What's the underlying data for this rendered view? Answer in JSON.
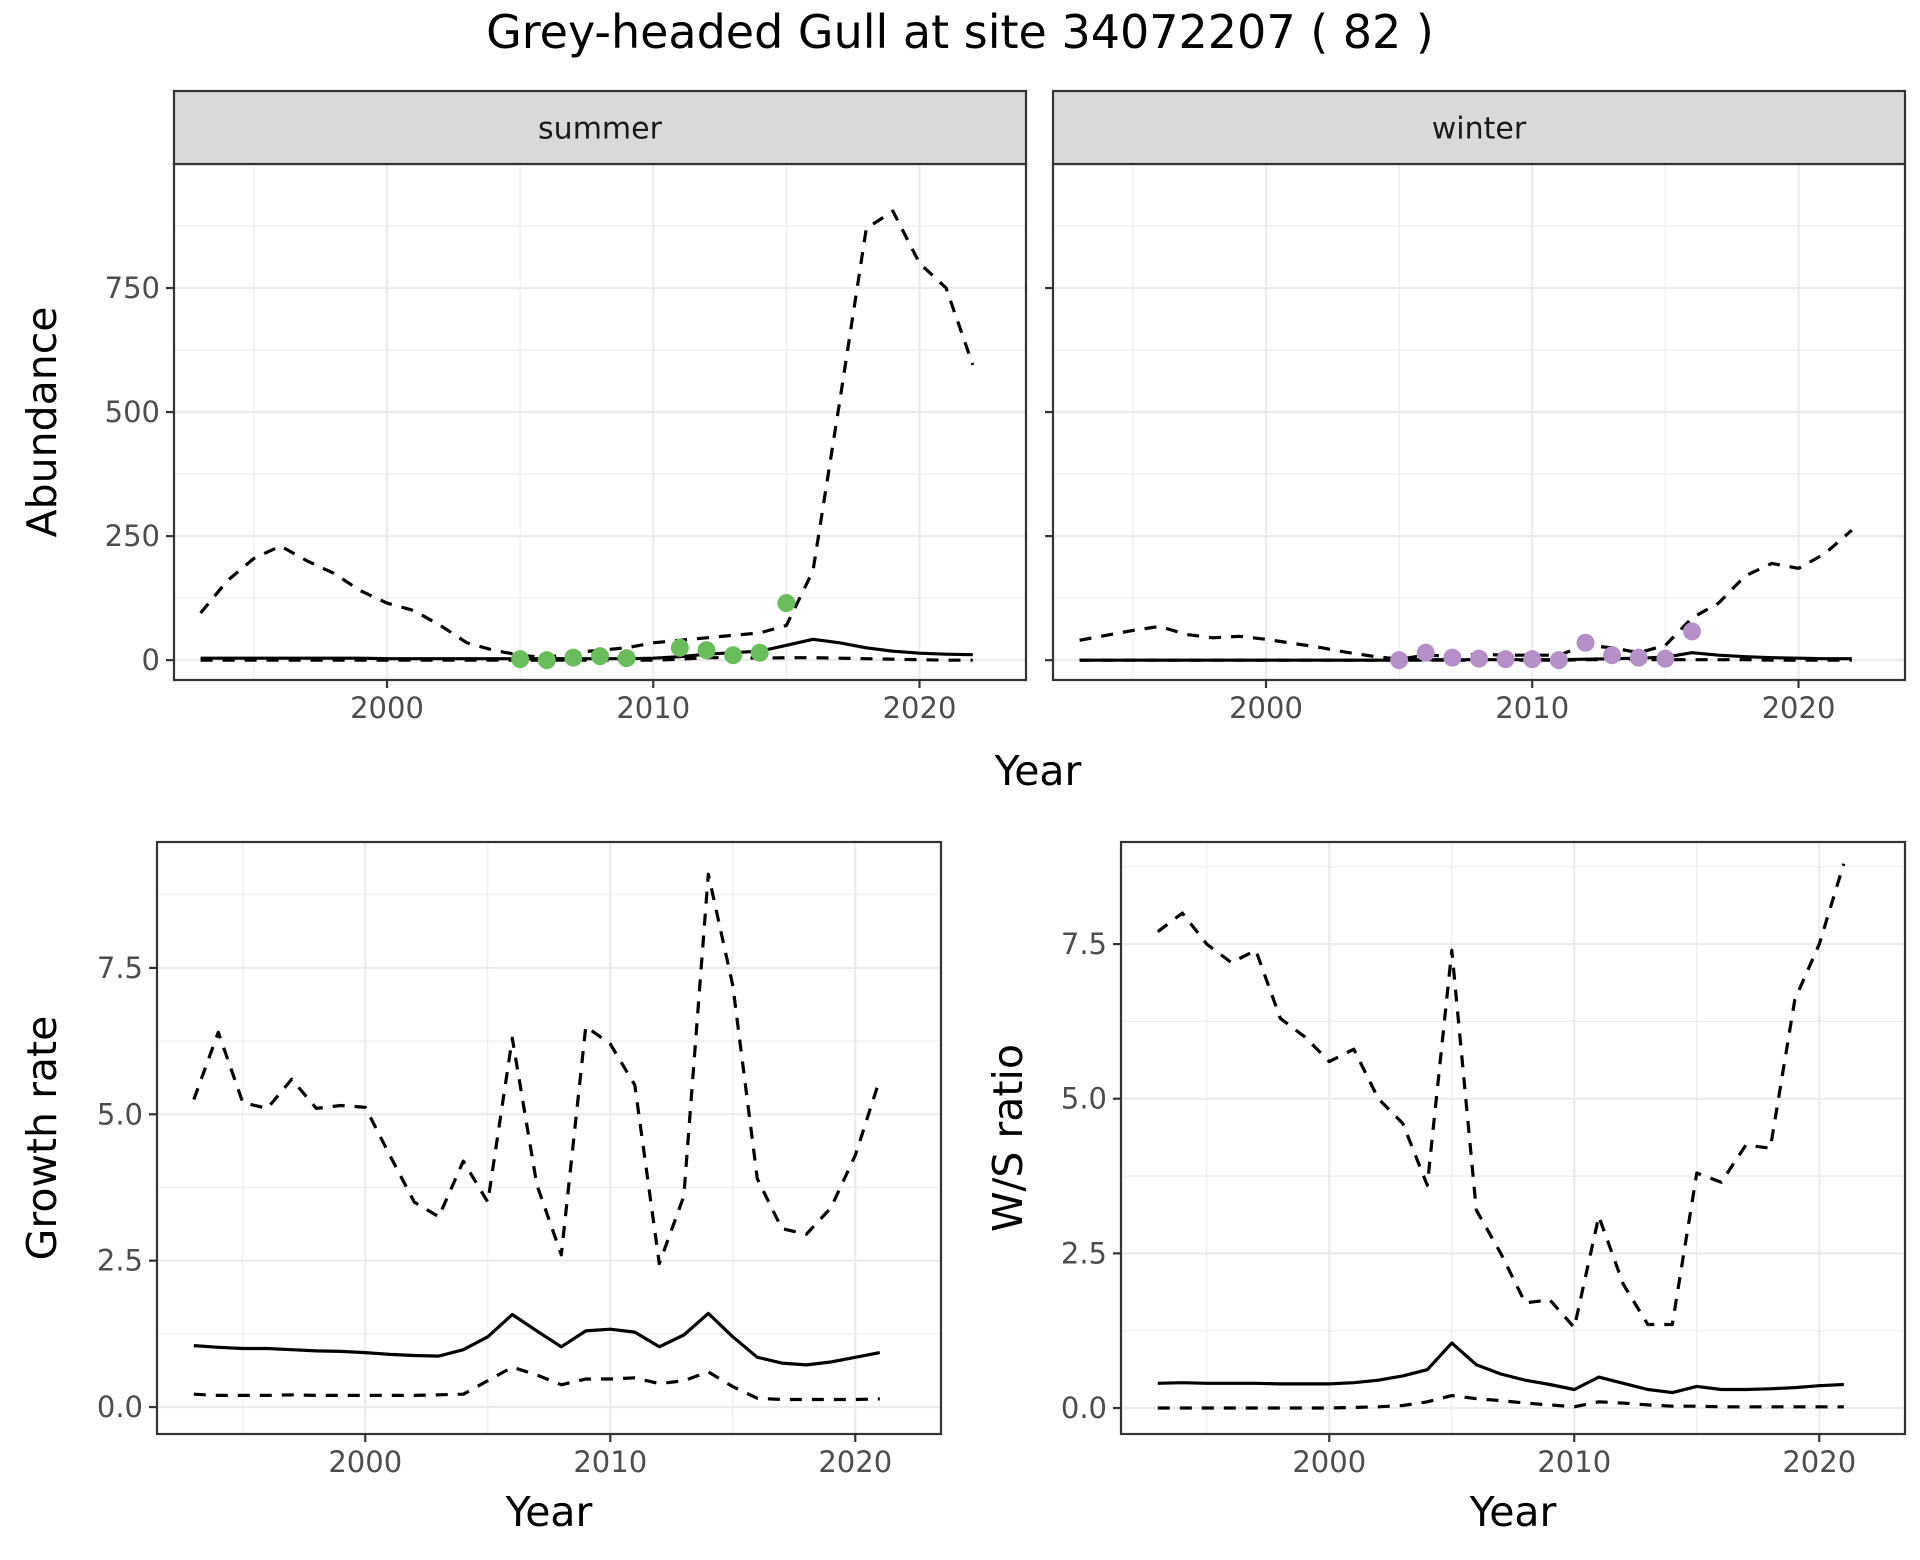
{
  "title": "Grey-headed Gull at site 34072207 ( 82 )",
  "colors": {
    "summer_points": "#6abd5b",
    "winter_points": "#b48fc8"
  },
  "chart_data": [
    {
      "type": "line",
      "panel": "summer",
      "strip_label": "summer",
      "xlabel": "Year",
      "ylabel": "Abundance",
      "xlim": [
        1992,
        2024
      ],
      "ylim": [
        -40,
        1000
      ],
      "x_ticks": [
        2000,
        2010,
        2020
      ],
      "y_ticks": [
        0,
        250,
        500,
        750
      ],
      "x_tick_labels": [
        "2000",
        "2010",
        "2020"
      ],
      "y_tick_labels": [
        "0",
        "250",
        "500",
        "750"
      ],
      "grid": true,
      "series": [
        {
          "style": "solid",
          "x": [
            1993,
            1994,
            1995,
            1996,
            1997,
            1998,
            1999,
            2000,
            2001,
            2002,
            2003,
            2004,
            2005,
            2006,
            2007,
            2008,
            2009,
            2010,
            2011,
            2012,
            2013,
            2014,
            2015,
            2016,
            2017,
            2018,
            2019,
            2020,
            2021,
            2022
          ],
          "y": [
            4,
            4,
            4,
            4,
            4,
            4,
            4,
            3,
            3,
            3,
            3,
            3,
            3,
            3,
            3,
            3,
            3,
            4,
            7,
            12,
            15,
            18,
            30,
            42,
            35,
            25,
            18,
            14,
            12,
            11
          ]
        },
        {
          "style": "dashed",
          "x": [
            1993,
            1994,
            1995,
            1996,
            1997,
            1998,
            1999,
            2000,
            2001,
            2002,
            2003,
            2004,
            2005,
            2006,
            2007,
            2008,
            2009,
            2010,
            2011,
            2012,
            2013,
            2014,
            2015,
            2016,
            2017,
            2018,
            2019,
            2020,
            2021,
            2022
          ],
          "y": [
            95,
            160,
            205,
            230,
            200,
            175,
            140,
            115,
            100,
            70,
            35,
            20,
            10,
            5,
            15,
            20,
            25,
            35,
            40,
            45,
            50,
            55,
            70,
            180,
            520,
            870,
            905,
            800,
            750,
            595
          ]
        },
        {
          "style": "dashed",
          "x": [
            1993,
            1994,
            1995,
            1996,
            1997,
            1998,
            1999,
            2000,
            2001,
            2002,
            2003,
            2004,
            2005,
            2006,
            2007,
            2008,
            2009,
            2010,
            2011,
            2012,
            2013,
            2014,
            2015,
            2016,
            2017,
            2018,
            2019,
            2020,
            2021,
            2022
          ],
          "y": [
            0,
            0,
            0,
            0,
            0,
            0,
            0,
            0,
            0,
            0,
            0,
            0,
            0,
            0,
            0,
            0,
            0,
            0,
            2,
            5,
            5,
            4,
            5,
            5,
            4,
            3,
            2,
            1,
            0,
            0
          ]
        }
      ],
      "points": {
        "x": [
          2005,
          2006,
          2007,
          2008,
          2009,
          2011,
          2012,
          2013,
          2014,
          2015
        ],
        "y": [
          2,
          0,
          5,
          8,
          4,
          25,
          20,
          10,
          15,
          115
        ]
      }
    },
    {
      "type": "line",
      "panel": "winter",
      "strip_label": "winter",
      "xlabel": "Year",
      "ylabel": "",
      "xlim": [
        1992,
        2024
      ],
      "ylim": [
        -40,
        1000
      ],
      "x_ticks": [
        2000,
        2010,
        2020
      ],
      "y_ticks": [
        0,
        250,
        500,
        750
      ],
      "x_tick_labels": [
        "2000",
        "2010",
        "2020"
      ],
      "grid": true,
      "series": [
        {
          "style": "solid",
          "x": [
            1993,
            1994,
            1995,
            1996,
            1997,
            1998,
            1999,
            2000,
            2001,
            2002,
            2003,
            2004,
            2005,
            2006,
            2007,
            2008,
            2009,
            2010,
            2011,
            2012,
            2013,
            2014,
            2015,
            2016,
            2017,
            2018,
            2019,
            2020,
            2021,
            2022
          ],
          "y": [
            0,
            0,
            0,
            0,
            0,
            0,
            0,
            0,
            0,
            0,
            0,
            0,
            0,
            1,
            1,
            1,
            1,
            1,
            1,
            2,
            3,
            4,
            6,
            15,
            10,
            7,
            5,
            4,
            3,
            3
          ]
        },
        {
          "style": "dashed",
          "x": [
            1993,
            1994,
            1995,
            1996,
            1997,
            1998,
            1999,
            2000,
            2001,
            2002,
            2003,
            2004,
            2005,
            2006,
            2007,
            2008,
            2009,
            2010,
            2011,
            2012,
            2013,
            2014,
            2015,
            2016,
            2017,
            2018,
            2019,
            2020,
            2021,
            2022
          ],
          "y": [
            40,
            50,
            60,
            68,
            52,
            45,
            48,
            42,
            34,
            26,
            16,
            8,
            2,
            10,
            8,
            12,
            10,
            10,
            10,
            30,
            25,
            15,
            30,
            85,
            115,
            170,
            195,
            185,
            215,
            262
          ]
        },
        {
          "style": "dashed",
          "x": [
            1993,
            1994,
            1995,
            1996,
            1997,
            1998,
            1999,
            2000,
            2001,
            2002,
            2003,
            2004,
            2005,
            2006,
            2007,
            2008,
            2009,
            2010,
            2011,
            2012,
            2013,
            2014,
            2015,
            2016,
            2017,
            2018,
            2019,
            2020,
            2021,
            2022
          ],
          "y": [
            0,
            0,
            0,
            0,
            0,
            0,
            0,
            0,
            0,
            0,
            0,
            0,
            0,
            0,
            0,
            0,
            0,
            0,
            0,
            1,
            1,
            1,
            1,
            1,
            1,
            1,
            0,
            0,
            0,
            0
          ]
        }
      ],
      "points": {
        "x": [
          2005,
          2006,
          2007,
          2008,
          2009,
          2010,
          2011,
          2012,
          2013,
          2014,
          2015,
          2016
        ],
        "y": [
          0,
          15,
          5,
          3,
          2,
          2,
          0,
          35,
          10,
          5,
          3,
          58
        ]
      }
    },
    {
      "type": "line",
      "panel": "growth",
      "xlabel": "Year",
      "ylabel": "Growth rate",
      "xlim": [
        1991.5,
        2023.5
      ],
      "ylim": [
        -0.46,
        9.65
      ],
      "x_ticks": [
        2000,
        2010,
        2020
      ],
      "y_ticks": [
        0,
        2.5,
        5,
        7.5
      ],
      "x_tick_labels": [
        "2000",
        "2010",
        "2020"
      ],
      "y_tick_labels": [
        "0.0",
        "2.5",
        "5.0",
        "7.5"
      ],
      "grid": true,
      "series": [
        {
          "style": "solid",
          "x": [
            1993,
            1994,
            1995,
            1996,
            1997,
            1998,
            1999,
            2000,
            2001,
            2002,
            2003,
            2004,
            2005,
            2006,
            2007,
            2008,
            2009,
            2010,
            2011,
            2012,
            2013,
            2014,
            2015,
            2016,
            2017,
            2018,
            2019,
            2020,
            2021
          ],
          "y": [
            1.05,
            1.02,
            1.0,
            1.0,
            0.98,
            0.96,
            0.95,
            0.93,
            0.9,
            0.88,
            0.87,
            0.98,
            1.2,
            1.58,
            1.3,
            1.03,
            1.3,
            1.33,
            1.28,
            1.03,
            1.23,
            1.6,
            1.2,
            0.85,
            0.75,
            0.72,
            0.77,
            0.85,
            0.93
          ]
        },
        {
          "style": "dashed",
          "x": [
            1993,
            1994,
            1995,
            1996,
            1997,
            1998,
            1999,
            2000,
            2001,
            2002,
            2003,
            2004,
            2005,
            2006,
            2007,
            2008,
            2009,
            2010,
            2011,
            2012,
            2013,
            2014,
            2015,
            2016,
            2017,
            2018,
            2019,
            2020,
            2021
          ],
          "y": [
            5.25,
            6.4,
            5.2,
            5.1,
            5.6,
            5.1,
            5.15,
            5.12,
            4.3,
            3.5,
            3.25,
            4.2,
            3.5,
            6.3,
            3.8,
            2.6,
            6.5,
            6.2,
            5.5,
            2.45,
            3.6,
            9.1,
            7.2,
            3.9,
            3.05,
            2.95,
            3.4,
            4.3,
            5.6
          ]
        },
        {
          "style": "dashed",
          "x": [
            1993,
            1994,
            1995,
            1996,
            1997,
            1998,
            1999,
            2000,
            2001,
            2002,
            2003,
            2004,
            2005,
            2006,
            2007,
            2008,
            2009,
            2010,
            2011,
            2012,
            2013,
            2014,
            2015,
            2016,
            2017,
            2018,
            2019,
            2020,
            2021
          ],
          "y": [
            0.22,
            0.2,
            0.2,
            0.2,
            0.21,
            0.2,
            0.2,
            0.2,
            0.2,
            0.2,
            0.21,
            0.22,
            0.45,
            0.68,
            0.55,
            0.38,
            0.48,
            0.48,
            0.5,
            0.4,
            0.45,
            0.6,
            0.35,
            0.15,
            0.13,
            0.13,
            0.13,
            0.13,
            0.14
          ]
        }
      ]
    },
    {
      "type": "line",
      "panel": "ratio",
      "xlabel": "Year",
      "ylabel": "W/S ratio",
      "xlim": [
        1991.5,
        2023.5
      ],
      "ylim": [
        -0.42,
        9.15
      ],
      "x_ticks": [
        2000,
        2010,
        2020
      ],
      "y_ticks": [
        0,
        2.5,
        5,
        7.5
      ],
      "x_tick_labels": [
        "2000",
        "2010",
        "2020"
      ],
      "y_tick_labels": [
        "0.0",
        "2.5",
        "5.0",
        "7.5"
      ],
      "grid": true,
      "series": [
        {
          "style": "solid",
          "x": [
            1993,
            1994,
            1995,
            1996,
            1997,
            1998,
            1999,
            2000,
            2001,
            2002,
            2003,
            2004,
            2005,
            2006,
            2007,
            2008,
            2009,
            2010,
            2011,
            2012,
            2013,
            2014,
            2015,
            2016,
            2017,
            2018,
            2019,
            2020,
            2021
          ],
          "y": [
            0.4,
            0.41,
            0.4,
            0.4,
            0.4,
            0.39,
            0.39,
            0.39,
            0.41,
            0.45,
            0.52,
            0.62,
            1.05,
            0.7,
            0.55,
            0.45,
            0.38,
            0.3,
            0.5,
            0.4,
            0.3,
            0.25,
            0.35,
            0.3,
            0.3,
            0.31,
            0.33,
            0.36,
            0.38
          ]
        },
        {
          "style": "dashed",
          "x": [
            1993,
            1994,
            1995,
            1996,
            1997,
            1998,
            1999,
            2000,
            2001,
            2002,
            2003,
            2004,
            2005,
            2006,
            2007,
            2008,
            2009,
            2010,
            2011,
            2012,
            2013,
            2014,
            2015,
            2016,
            2017,
            2018,
            2019,
            2020,
            2021
          ],
          "y": [
            7.7,
            8.0,
            7.5,
            7.2,
            7.4,
            6.3,
            6.0,
            5.6,
            5.8,
            5.0,
            4.6,
            3.6,
            7.4,
            3.2,
            2.5,
            1.7,
            1.75,
            1.3,
            3.1,
            2.0,
            1.35,
            1.35,
            3.8,
            3.65,
            4.25,
            4.2,
            6.6,
            7.5,
            8.8
          ]
        },
        {
          "style": "dashed",
          "x": [
            1993,
            1994,
            1995,
            1996,
            1997,
            1998,
            1999,
            2000,
            2001,
            2002,
            2003,
            2004,
            2005,
            2006,
            2007,
            2008,
            2009,
            2010,
            2011,
            2012,
            2013,
            2014,
            2015,
            2016,
            2017,
            2018,
            2019,
            2020,
            2021
          ],
          "y": [
            0.0,
            0.0,
            0.0,
            0.0,
            0.0,
            0.0,
            0.0,
            0.0,
            0.01,
            0.02,
            0.04,
            0.1,
            0.2,
            0.15,
            0.12,
            0.08,
            0.05,
            0.02,
            0.1,
            0.08,
            0.05,
            0.03,
            0.03,
            0.02,
            0.02,
            0.02,
            0.02,
            0.02,
            0.02
          ]
        }
      ]
    }
  ]
}
